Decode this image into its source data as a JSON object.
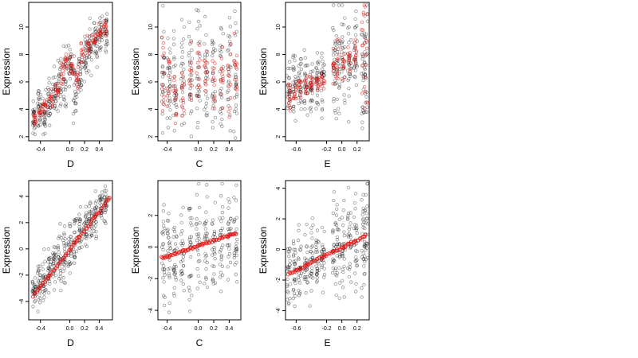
{
  "colors": {
    "observed": "#000000",
    "fitted": "#e8100f",
    "frame": "#000000"
  },
  "chart_data": [
    {
      "type": "scatter",
      "xlabel": "D",
      "ylabel": "Expression",
      "xlim": [
        -0.56,
        0.58
      ],
      "ylim": [
        1.7,
        11.8
      ],
      "xticks": [
        "-0.4",
        "0.0",
        "0.2",
        "0.4"
      ],
      "xtick_values": [
        -0.4,
        0.0,
        0.2,
        0.4
      ],
      "yticks": [
        "2",
        "4",
        "6",
        "8",
        "10"
      ],
      "ytick_values": [
        2,
        4,
        6,
        8,
        10
      ],
      "series": [
        {
          "role": "observed",
          "cluster_x": [
            -0.49,
            -0.42,
            -0.35,
            -0.28,
            -0.21,
            -0.14,
            -0.07,
            0.0,
            0.07,
            0.14,
            0.21,
            0.28,
            0.35,
            0.42,
            0.49
          ],
          "cluster_y_mean": [
            3.2,
            4.0,
            3.8,
            4.5,
            5.0,
            6.0,
            6.5,
            7.2,
            5.5,
            6.8,
            7.8,
            8.5,
            9.0,
            9.5,
            9.8
          ],
          "cluster_y_spread": [
            1.2,
            1.5,
            1.4,
            1.6,
            1.8,
            2.0,
            2.0,
            2.0,
            2.2,
            2.0,
            1.8,
            1.6,
            1.5,
            1.4,
            1.5
          ]
        },
        {
          "role": "fitted",
          "cluster_x": [
            -0.47,
            -0.4,
            -0.33,
            -0.25,
            -0.18,
            -0.1,
            -0.05,
            0.02,
            0.1,
            0.17,
            0.25,
            0.33,
            0.4,
            0.48
          ],
          "cluster_y_mean": [
            3.3,
            3.8,
            4.2,
            4.8,
            5.5,
            6.5,
            7.5,
            7.0,
            6.0,
            8.0,
            8.5,
            9.0,
            9.5,
            9.8
          ],
          "cluster_y_spread": [
            0.5,
            0.5,
            0.6,
            0.6,
            0.7,
            0.8,
            0.8,
            0.8,
            0.9,
            0.8,
            0.7,
            0.6,
            0.6,
            0.6
          ]
        }
      ]
    },
    {
      "type": "scatter",
      "xlabel": "C",
      "ylabel": "Expression",
      "xlim": [
        -0.52,
        0.55
      ],
      "ylim": [
        1.7,
        11.8
      ],
      "xticks": [
        "-0.4",
        "0.0",
        "0.2",
        "0.4"
      ],
      "xtick_values": [
        -0.4,
        0.0,
        0.2,
        0.4
      ],
      "yticks": [
        "2",
        "4",
        "6",
        "8",
        "10"
      ],
      "ytick_values": [
        2,
        4,
        6,
        8,
        10
      ],
      "series": [
        {
          "role": "observed",
          "cluster_x": [
            -0.45,
            -0.38,
            -0.3,
            -0.2,
            -0.1,
            0.0,
            0.1,
            0.2,
            0.3,
            0.4,
            0.48
          ],
          "cluster_y_mean": [
            6.5,
            6.5,
            6.0,
            6.3,
            6.5,
            6.5,
            6.5,
            6.3,
            6.5,
            6.5,
            6.6
          ],
          "cluster_y_spread": [
            4.0,
            4.0,
            3.8,
            3.8,
            3.8,
            3.8,
            3.8,
            3.8,
            3.8,
            4.0,
            4.0
          ]
        },
        {
          "role": "fitted",
          "cluster_x": [
            -0.45,
            -0.38,
            -0.3,
            -0.2,
            -0.1,
            0.0,
            0.1,
            0.2,
            0.3,
            0.4,
            0.48
          ],
          "cluster_y_mean": [
            6.5,
            6.5,
            5.5,
            5.2,
            6.5,
            6.5,
            6.5,
            6.3,
            6.5,
            6.5,
            6.6
          ],
          "cluster_y_spread": [
            3.0,
            3.0,
            2.5,
            2.0,
            2.8,
            2.8,
            2.8,
            2.8,
            2.8,
            3.0,
            3.0
          ]
        }
      ]
    },
    {
      "type": "scatter",
      "xlabel": "E",
      "ylabel": "Expression",
      "xlim": [
        -0.74,
        0.36
      ],
      "ylim": [
        1.7,
        11.8
      ],
      "xticks": [
        "-0.6",
        "-0.2",
        "0.0",
        "0.2"
      ],
      "xtick_values": [
        -0.6,
        -0.2,
        0.0,
        0.2
      ],
      "yticks": [
        "2",
        "4",
        "6",
        "8",
        "10"
      ],
      "ytick_values": [
        2,
        4,
        6,
        8,
        10
      ],
      "series": [
        {
          "role": "observed",
          "cluster_x": [
            -0.7,
            -0.62,
            -0.55,
            -0.47,
            -0.4,
            -0.32,
            -0.25,
            -0.1,
            -0.05,
            0.02,
            0.1,
            0.18,
            0.28,
            0.32
          ],
          "cluster_y_mean": [
            5.8,
            5.8,
            5.8,
            5.8,
            5.8,
            6.0,
            6.0,
            7.0,
            7.5,
            7.5,
            7.5,
            7.5,
            7.5,
            7.5
          ],
          "cluster_y_spread": [
            2.5,
            2.5,
            2.5,
            2.2,
            2.2,
            2.0,
            2.0,
            3.5,
            3.5,
            3.5,
            3.5,
            3.5,
            4.0,
            4.0
          ]
        },
        {
          "role": "fitted",
          "cluster_x": [
            -0.69,
            -0.62,
            -0.55,
            -0.47,
            -0.4,
            -0.32,
            -0.25,
            -0.1,
            -0.05,
            0.02,
            0.1,
            0.18,
            0.28,
            0.32
          ],
          "cluster_y_mean": [
            5.0,
            5.5,
            5.8,
            5.8,
            5.9,
            6.0,
            6.0,
            7.3,
            7.5,
            7.0,
            7.5,
            8.0,
            7.5,
            7.5
          ],
          "cluster_y_spread": [
            1.0,
            1.0,
            0.8,
            0.8,
            0.6,
            0.6,
            0.6,
            1.6,
            1.6,
            1.5,
            1.5,
            1.5,
            4.5,
            4.5
          ]
        }
      ]
    },
    {
      "type": "scatter",
      "xlabel": "D",
      "ylabel": "Expression",
      "xlim": [
        -0.56,
        0.58
      ],
      "ylim": [
        -5.4,
        5.2
      ],
      "xticks": [
        "-0.4",
        "0.0",
        "0.2",
        "0.4"
      ],
      "xtick_values": [
        -0.4,
        0.0,
        0.2,
        0.4
      ],
      "yticks": [
        "-4",
        "-2",
        "0",
        "2",
        "4"
      ],
      "ytick_values": [
        -4,
        -2,
        0,
        2,
        4
      ],
      "series": [
        {
          "role": "observed",
          "cluster_x": [
            -0.49,
            -0.42,
            -0.35,
            -0.28,
            -0.21,
            -0.14,
            -0.07,
            0.0,
            0.07,
            0.14,
            0.21,
            0.28,
            0.35,
            0.42,
            0.49
          ],
          "cluster_y_mean": [
            -3.3,
            -2.8,
            -2.3,
            -1.8,
            -1.3,
            -0.8,
            -0.3,
            0.2,
            0.6,
            1.2,
            1.7,
            2.2,
            2.7,
            3.1,
            3.5
          ],
          "cluster_y_spread": [
            1.2,
            1.5,
            1.6,
            1.6,
            1.8,
            1.9,
            2.0,
            2.0,
            2.0,
            2.0,
            1.8,
            1.6,
            1.5,
            1.4,
            1.4
          ]
        },
        {
          "role": "fitted",
          "line_from": [
            -0.5,
            -3.6
          ],
          "line_to": [
            0.55,
            3.9
          ]
        }
      ]
    },
    {
      "type": "scatter",
      "xlabel": "C",
      "ylabel": "Expression",
      "xlim": [
        -0.52,
        0.55
      ],
      "ylim": [
        -4.6,
        4.2
      ],
      "xticks": [
        "-0.4",
        "0.0",
        "0.2",
        "0.4"
      ],
      "xtick_values": [
        -0.4,
        0.0,
        0.2,
        0.4
      ],
      "yticks": [
        "-4",
        "-2",
        "0",
        "2"
      ],
      "ytick_values": [
        -4,
        -2,
        0,
        2
      ],
      "series": [
        {
          "role": "observed",
          "cluster_x": [
            -0.45,
            -0.38,
            -0.3,
            -0.2,
            -0.1,
            0.0,
            0.1,
            0.2,
            0.3,
            0.4,
            0.48
          ],
          "cluster_y_mean": [
            -0.6,
            -0.5,
            -0.4,
            -0.3,
            -0.1,
            0.0,
            0.1,
            0.3,
            0.4,
            0.5,
            0.6
          ],
          "cluster_y_spread": [
            3.2,
            3.2,
            3.0,
            3.0,
            3.0,
            3.0,
            3.0,
            3.0,
            3.0,
            3.2,
            3.2
          ]
        },
        {
          "role": "fitted",
          "line_from": [
            -0.47,
            -0.7
          ],
          "line_to": [
            0.5,
            0.9
          ]
        }
      ]
    },
    {
      "type": "scatter",
      "xlabel": "E",
      "ylabel": "Expression",
      "xlim": [
        -0.74,
        0.36
      ],
      "ylim": [
        -4.6,
        4.5
      ],
      "xticks": [
        "-0.6",
        "-0.2",
        "0.0",
        "0.2"
      ],
      "xtick_values": [
        -0.6,
        -0.2,
        0.0,
        0.2
      ],
      "yticks": [
        "-4",
        "-2",
        "0",
        "2",
        "4"
      ],
      "ytick_values": [
        -4,
        -2,
        0,
        2,
        4
      ],
      "series": [
        {
          "role": "observed",
          "cluster_x": [
            -0.7,
            -0.62,
            -0.55,
            -0.47,
            -0.4,
            -0.32,
            -0.25,
            -0.1,
            -0.05,
            0.02,
            0.1,
            0.18,
            0.28,
            0.32
          ],
          "cluster_y_mean": [
            -1.5,
            -1.3,
            -1.2,
            -1.0,
            -0.8,
            -0.6,
            -0.4,
            0.0,
            0.1,
            0.2,
            0.3,
            0.4,
            0.6,
            0.7
          ],
          "cluster_y_spread": [
            2.5,
            2.5,
            2.5,
            2.5,
            2.5,
            2.5,
            2.5,
            3.0,
            3.0,
            3.0,
            3.0,
            3.0,
            3.5,
            3.5
          ]
        },
        {
          "role": "fitted",
          "line_from": [
            -0.7,
            -1.6
          ],
          "line_to": [
            0.32,
            0.9
          ]
        }
      ]
    }
  ]
}
